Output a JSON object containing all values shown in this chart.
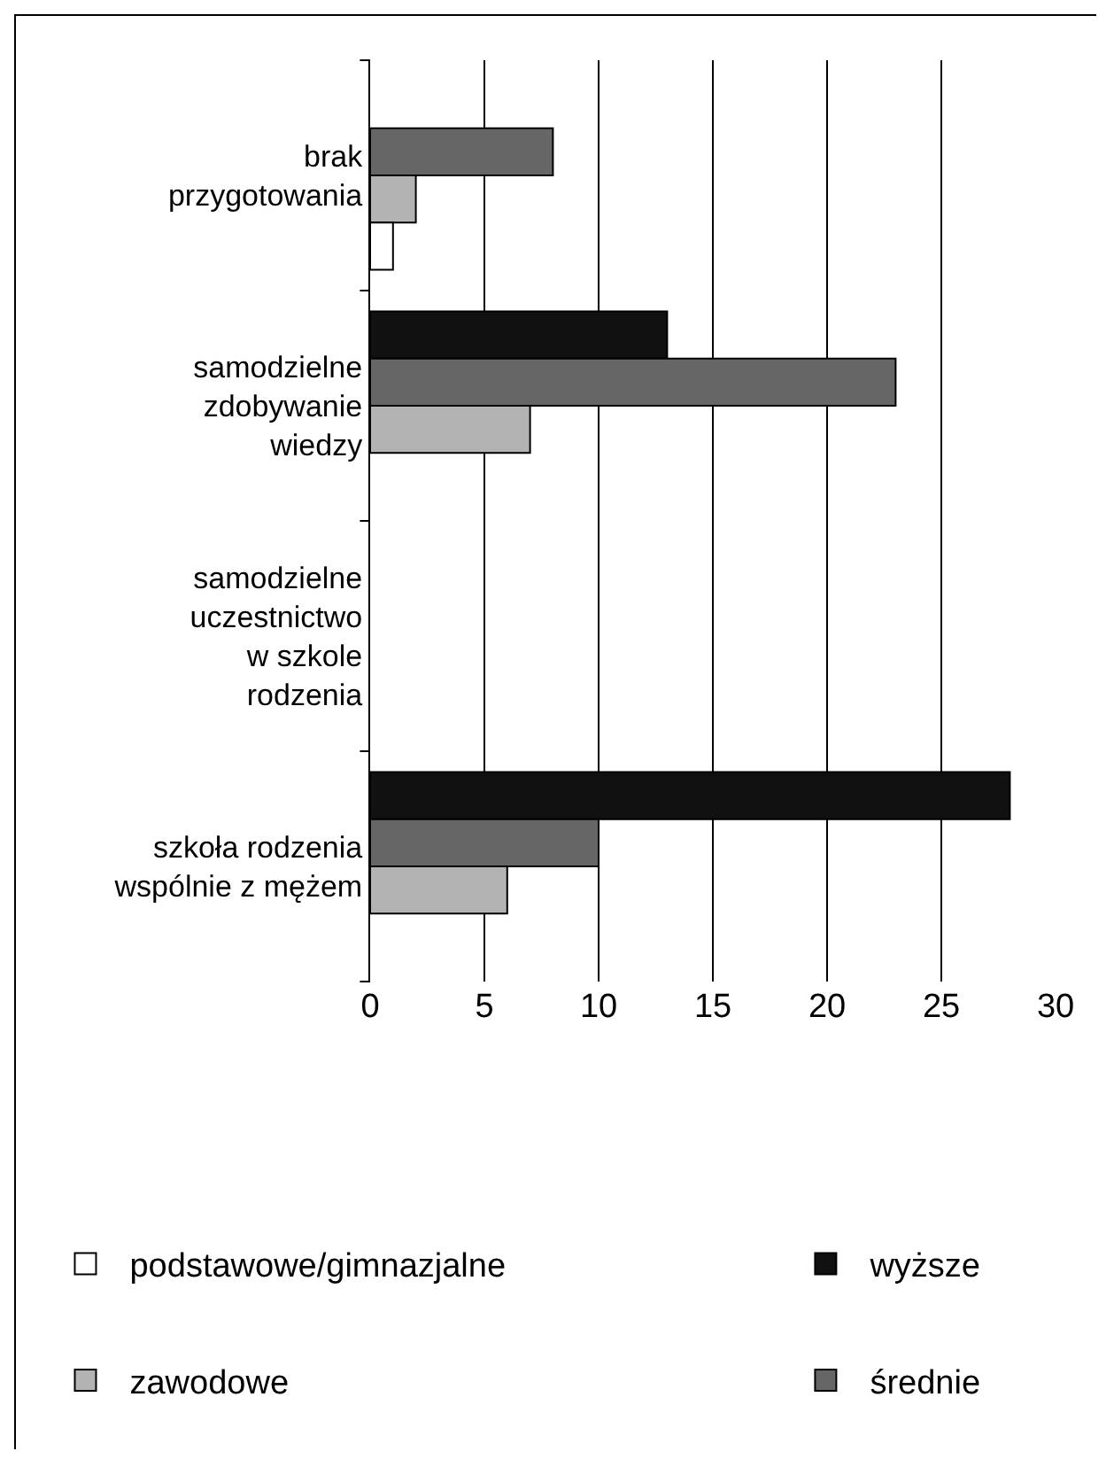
{
  "chart_data": {
    "type": "bar",
    "orientation": "horizontal",
    "categories": [
      "brak przygotowania",
      "samodzielne zdobywanie wiedzy",
      "samodzielne uczestnictwo w szkole rodzenia",
      "szkoła rodzenia wspólnie z mężem"
    ],
    "series": [
      {
        "name": "wyższe",
        "color": "#111111",
        "values": [
          null,
          13,
          null,
          28
        ]
      },
      {
        "name": "średnie",
        "color": "#666666",
        "values": [
          8,
          23,
          null,
          10
        ]
      },
      {
        "name": "zawodowe",
        "color": "#b3b3b3",
        "values": [
          2,
          7,
          null,
          6
        ]
      },
      {
        "name": "podstawowe/gimnazjalne",
        "color": "#ffffff",
        "values": [
          1,
          null,
          null,
          null
        ]
      }
    ],
    "xlim": [
      0,
      30
    ],
    "xticks": [
      0,
      5,
      10,
      15,
      20,
      25,
      30
    ],
    "grid": "x",
    "legend": "bottom"
  }
}
